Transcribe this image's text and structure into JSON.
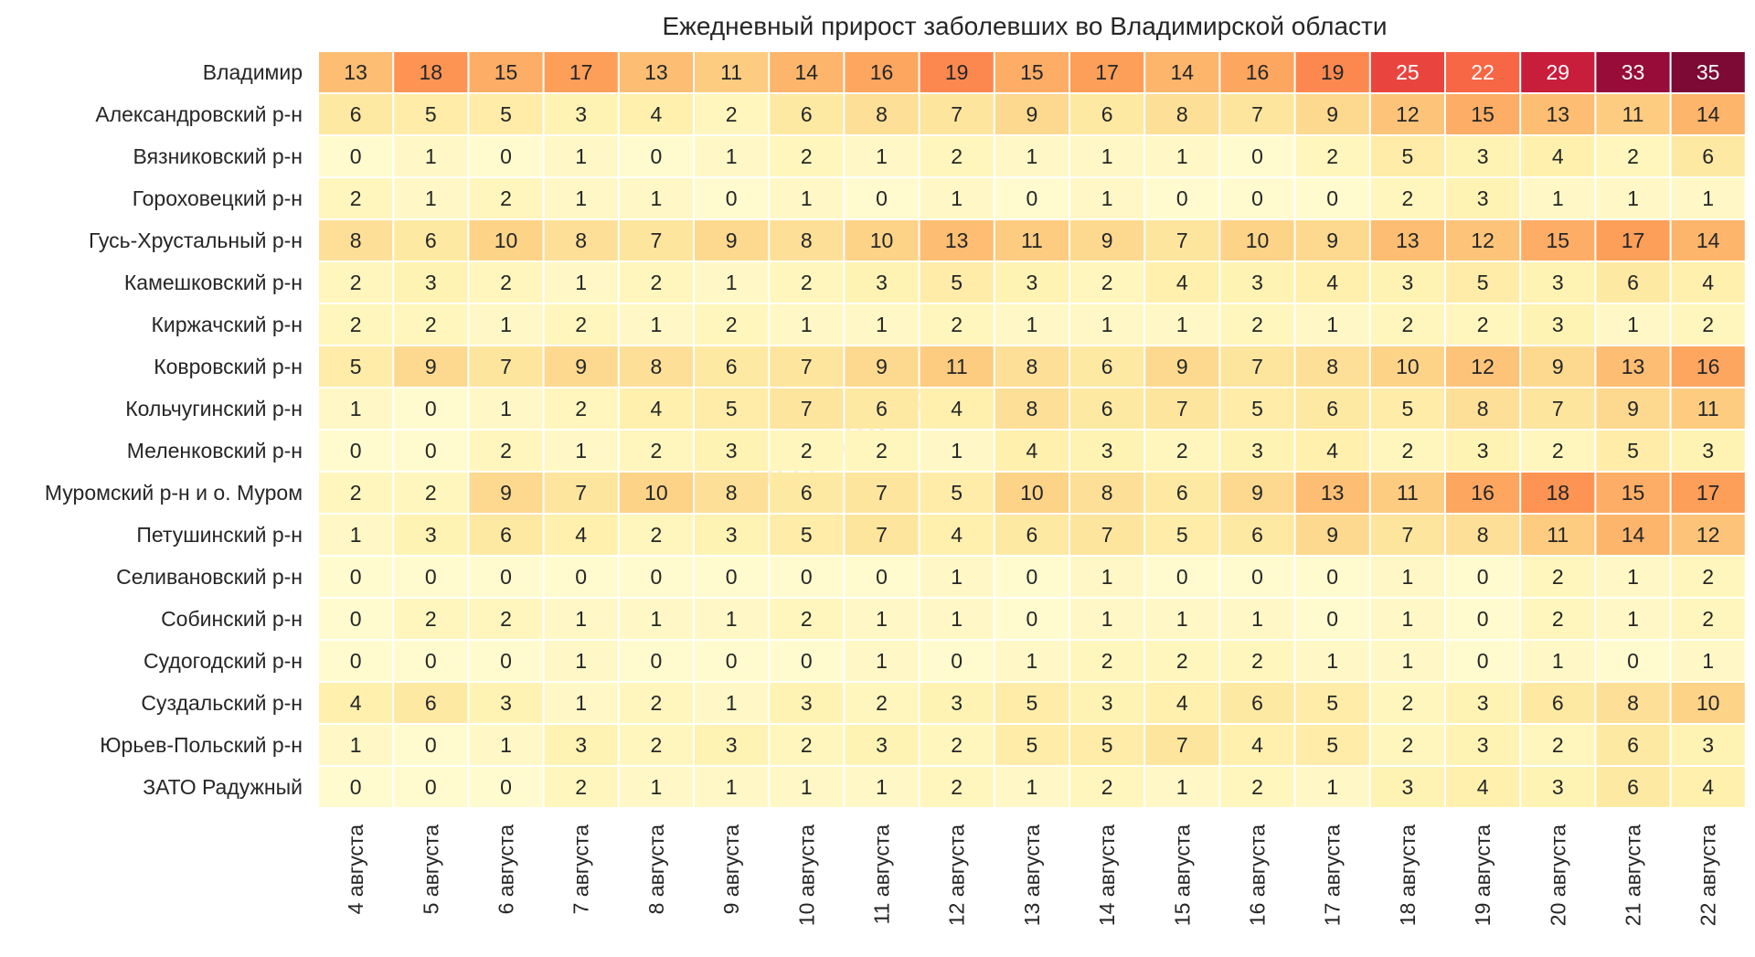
{
  "chart_data": {
    "type": "heatmap",
    "title": "Ежедневный прирост заболевших во Владимирской области",
    "watermark": "provladimir",
    "x_categories": [
      "4 августа",
      "5 августа",
      "6 августа",
      "7 августа",
      "8 августа",
      "9 августа",
      "10 августа",
      "11 августа",
      "12 августа",
      "13 августа",
      "14 августа",
      "15 августа",
      "16 августа",
      "17 августа",
      "18 августа",
      "19 августа",
      "20 августа",
      "21 августа",
      "22 августа"
    ],
    "y_categories": [
      "Владимир",
      "Александровский р-н",
      "Вязниковский р-н",
      "Гороховецкий р-н",
      "Гусь-Хрустальный р-н",
      "Камешковский р-н",
      "Киржачский р-н",
      "Ковровский р-н",
      "Кольчугинский р-н",
      "Меленковский р-н",
      "Муромский р-н и о. Муром",
      "Петушинский р-н",
      "Селивановский р-н",
      "Собинский р-н",
      "Судогодский р-н",
      "Суздальский р-н",
      "Юрьев-Польский р-н",
      "ЗАТО Радужный"
    ],
    "values": [
      [
        13,
        18,
        15,
        17,
        13,
        11,
        14,
        16,
        19,
        15,
        17,
        14,
        16,
        19,
        25,
        22,
        29,
        33,
        35
      ],
      [
        6,
        5,
        5,
        3,
        4,
        2,
        6,
        8,
        7,
        9,
        6,
        8,
        7,
        9,
        12,
        15,
        13,
        11,
        14
      ],
      [
        0,
        1,
        0,
        1,
        0,
        1,
        2,
        1,
        2,
        1,
        1,
        1,
        0,
        2,
        5,
        3,
        4,
        2,
        6
      ],
      [
        2,
        1,
        2,
        1,
        1,
        0,
        1,
        0,
        1,
        0,
        1,
        0,
        0,
        0,
        2,
        3,
        1,
        1,
        1
      ],
      [
        8,
        6,
        10,
        8,
        7,
        9,
        8,
        10,
        13,
        11,
        9,
        7,
        10,
        9,
        13,
        12,
        15,
        17,
        14
      ],
      [
        2,
        3,
        2,
        1,
        2,
        1,
        2,
        3,
        5,
        3,
        2,
        4,
        3,
        4,
        3,
        5,
        3,
        6,
        4
      ],
      [
        2,
        2,
        1,
        2,
        1,
        2,
        1,
        1,
        2,
        1,
        1,
        1,
        2,
        1,
        2,
        2,
        3,
        1,
        2
      ],
      [
        5,
        9,
        7,
        9,
        8,
        6,
        7,
        9,
        11,
        8,
        6,
        9,
        7,
        8,
        10,
        12,
        9,
        13,
        16
      ],
      [
        1,
        0,
        1,
        2,
        4,
        5,
        7,
        6,
        4,
        8,
        6,
        7,
        5,
        6,
        5,
        8,
        7,
        9,
        11
      ],
      [
        0,
        0,
        2,
        1,
        2,
        3,
        2,
        2,
        1,
        4,
        3,
        2,
        3,
        4,
        2,
        3,
        2,
        5,
        3
      ],
      [
        2,
        2,
        9,
        7,
        10,
        8,
        6,
        7,
        5,
        10,
        8,
        6,
        9,
        13,
        11,
        16,
        18,
        15,
        17
      ],
      [
        1,
        3,
        6,
        4,
        2,
        3,
        5,
        7,
        4,
        6,
        7,
        5,
        6,
        9,
        7,
        8,
        11,
        14,
        12
      ],
      [
        0,
        0,
        0,
        0,
        0,
        0,
        0,
        0,
        1,
        0,
        1,
        0,
        0,
        0,
        1,
        0,
        2,
        1,
        2
      ],
      [
        0,
        2,
        2,
        1,
        1,
        1,
        2,
        1,
        1,
        0,
        1,
        1,
        1,
        0,
        1,
        0,
        2,
        1,
        2
      ],
      [
        0,
        0,
        0,
        1,
        0,
        0,
        0,
        1,
        0,
        1,
        2,
        2,
        2,
        1,
        1,
        0,
        1,
        0,
        1
      ],
      [
        4,
        6,
        3,
        1,
        2,
        1,
        3,
        2,
        3,
        5,
        3,
        4,
        6,
        5,
        2,
        3,
        6,
        8,
        10
      ],
      [
        1,
        0,
        1,
        3,
        2,
        3,
        2,
        3,
        2,
        5,
        5,
        7,
        4,
        5,
        2,
        3,
        2,
        6,
        3
      ],
      [
        0,
        0,
        0,
        2,
        1,
        1,
        1,
        1,
        2,
        1,
        2,
        1,
        2,
        1,
        3,
        4,
        3,
        6,
        4
      ]
    ],
    "color_scale": {
      "name": "YlOrRd",
      "min": 0,
      "max": 35,
      "stops": [
        "#fffbcf",
        "#fff2b0",
        "#fde59e",
        "#fdd084",
        "#fdb56b",
        "#fd9a56",
        "#fa7148",
        "#ee4a3f",
        "#d4233c",
        "#ac0d3c",
        "#7c0a34"
      ]
    },
    "legend": "none",
    "grid": false
  }
}
